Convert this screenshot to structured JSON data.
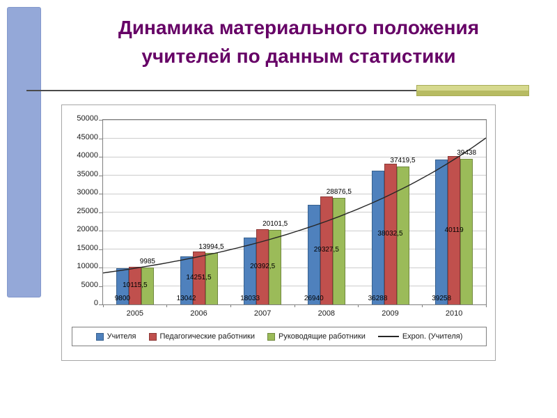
{
  "slide": {
    "title": {
      "line1": "Динамика материального положения",
      "line2": "учителей по данным статистики",
      "color": "#660066"
    },
    "accents": {
      "left_band_color": "#94a8d8",
      "divider_accent_top": "#d6d98e",
      "divider_accent_bottom": "#b7bb62"
    }
  },
  "chart_data": {
    "type": "bar",
    "title": "",
    "categories": [
      "2005",
      "2006",
      "2007",
      "2008",
      "2009",
      "2010"
    ],
    "series": [
      {
        "key": "teachers",
        "name": "Учителя",
        "color": "#4f81bd",
        "border": "#38618e",
        "label_position": "inside-base",
        "values": [
          9800,
          13042,
          18033,
          26940,
          36288,
          39258
        ],
        "labels": [
          "9800",
          "13042",
          "18033",
          "26940",
          "36288",
          "39258"
        ]
      },
      {
        "key": "pedagogical-workers",
        "name": "Педагогические работники",
        "color": "#c0504d",
        "border": "#8c3836",
        "label_position": "center",
        "values": [
          10115.5,
          14251.5,
          20392.5,
          29327.5,
          38032.5,
          40119
        ],
        "labels": [
          "10115,5",
          "14251,5",
          "20392,5",
          "29327,5",
          "38032,5",
          "40119"
        ]
      },
      {
        "key": "managerial-workers",
        "name": "Руководящие работники",
        "color": "#9bbb59",
        "border": "#71893f",
        "label_position": "above",
        "values": [
          9985,
          13994.5,
          20101.5,
          28876.5,
          37419.5,
          39438
        ],
        "labels": [
          "9985",
          "13994,5",
          "20101,5",
          "28876,5",
          "37419,5",
          "39438"
        ]
      }
    ],
    "trendline": {
      "name": "Expon. (Учителя)",
      "type": "exponential",
      "base_series": "Учителя",
      "color": "#262626"
    },
    "ylim": [
      0,
      50000
    ],
    "ytick_step": 5000,
    "yticks": [
      "0",
      "5000",
      "10000",
      "15000",
      "20000",
      "25000",
      "30000",
      "35000",
      "40000",
      "45000",
      "50000"
    ],
    "grid": true,
    "legend_position": "bottom"
  }
}
